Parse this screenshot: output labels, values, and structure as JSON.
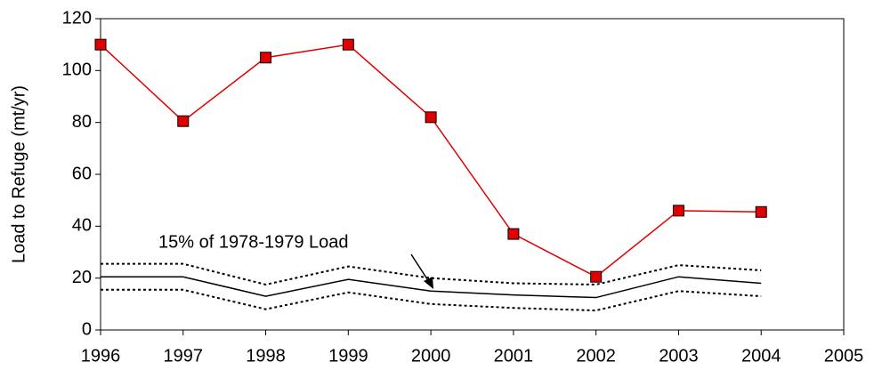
{
  "chart_data": {
    "type": "line",
    "ylabel": "Load to Refuge (mt/yr)",
    "annotation": "15% of 1978-1979 Load",
    "x": [
      1996,
      1997,
      1998,
      1999,
      2000,
      2001,
      2002,
      2003,
      2004
    ],
    "xlim": [
      1996,
      2005
    ],
    "xticks": [
      1996,
      1997,
      1998,
      1999,
      2000,
      2001,
      2002,
      2003,
      2004,
      2005
    ],
    "ylim": [
      0,
      120
    ],
    "yticks": [
      0,
      20,
      40,
      60,
      80,
      100,
      120
    ],
    "grid": false,
    "series": [
      {
        "color": "#e00000",
        "marker": "square",
        "style": "solid",
        "values": [
          110,
          80.5,
          105,
          110,
          82,
          37,
          20.5,
          46,
          45.5
        ]
      },
      {
        "color": "#000000",
        "style": "solid",
        "values": [
          20.5,
          20.5,
          13,
          19.5,
          15,
          13.5,
          12.5,
          20.5,
          18
        ]
      },
      {
        "color": "#000000",
        "style": "dotted",
        "values": [
          25.5,
          25.5,
          17.5,
          24.5,
          20,
          18,
          17.5,
          25,
          23
        ]
      },
      {
        "color": "#000000",
        "style": "dotted",
        "values": [
          15.5,
          15.5,
          8,
          14.5,
          10,
          8.5,
          7.5,
          15,
          13
        ]
      }
    ]
  }
}
